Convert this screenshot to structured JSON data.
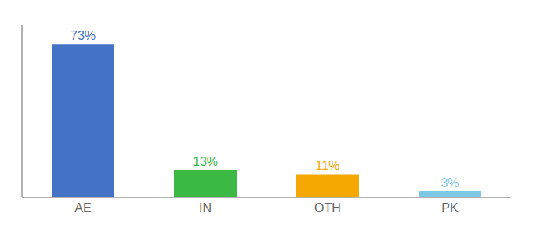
{
  "chart_data": {
    "type": "bar",
    "categories": [
      "AE",
      "IN",
      "OTH",
      "PK"
    ],
    "values": [
      73,
      13,
      11,
      3
    ],
    "value_labels": [
      "73%",
      "13%",
      "11%",
      "3%"
    ],
    "colors": [
      "#4472c4",
      "#3cb844",
      "#f5a800",
      "#7ec8e3"
    ],
    "ylim": [
      0,
      82
    ],
    "data_labels": true,
    "tick_labels": "x",
    "grid": false
  }
}
